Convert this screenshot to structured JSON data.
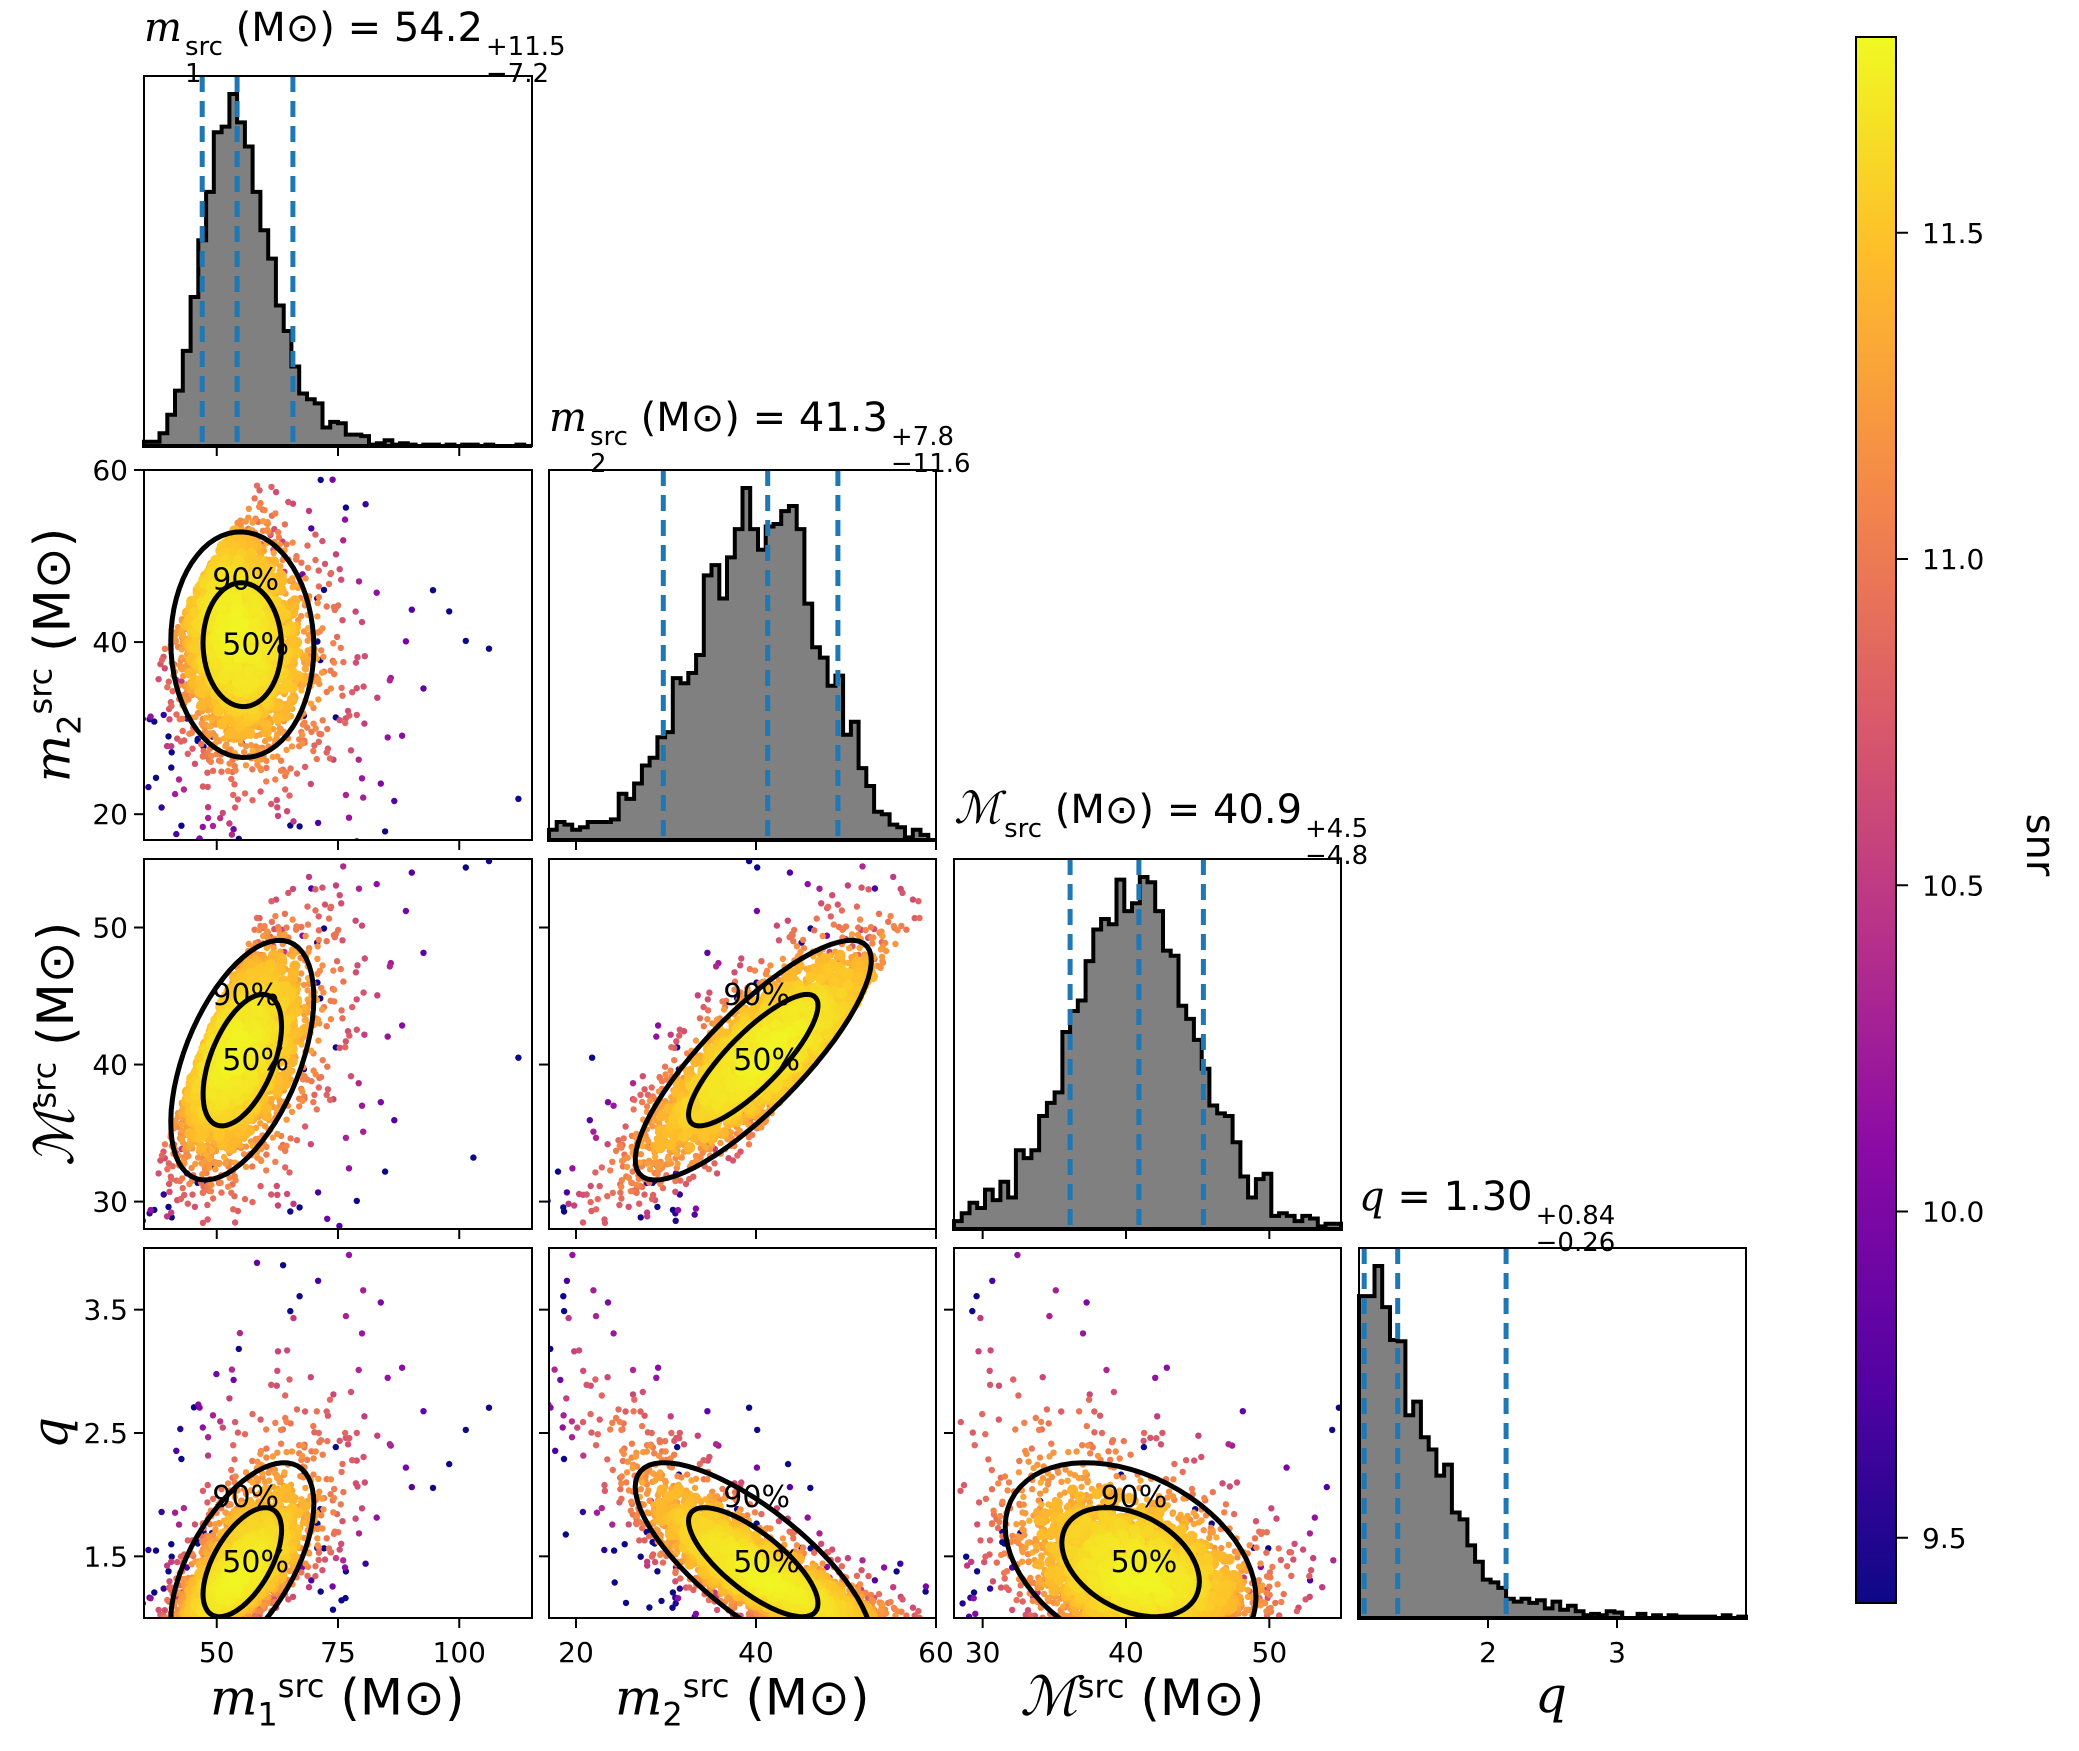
{
  "chart_data": {
    "type": "scatter",
    "kind": "corner-plot",
    "parameters": [
      {
        "key": "m1",
        "symbol": "m",
        "sub": "1",
        "sup": "src",
        "unit": "(M⊙)",
        "range": [
          35,
          115
        ],
        "ticks": [
          50,
          75,
          100
        ],
        "tick_labels": [
          "50",
          "75",
          "100"
        ]
      },
      {
        "key": "m2",
        "symbol": "m",
        "sub": "2",
        "sup": "src",
        "unit": "(M⊙)",
        "range": [
          17,
          60
        ],
        "ticks": [
          20,
          40,
          60
        ],
        "tick_labels": [
          "20",
          "40",
          "60"
        ]
      },
      {
        "key": "mc",
        "symbol": "ℳ",
        "sub": "",
        "sup": "src",
        "unit": "(M⊙)",
        "range": [
          28,
          55
        ],
        "ticks": [
          30,
          40,
          50
        ],
        "tick_labels": [
          "30",
          "40",
          "50"
        ]
      },
      {
        "key": "q",
        "symbol": "q",
        "sub": "",
        "sup": "",
        "unit": "",
        "range": [
          1.0,
          4.0
        ],
        "ticks": [
          1.5,
          2.5,
          3.5
        ],
        "tick_labels": [
          "1.5",
          "2.5",
          "3.5"
        ],
        "diag_ticks": [
          2,
          3
        ],
        "diag_tick_labels": [
          "2",
          "3"
        ]
      }
    ],
    "titles": [
      {
        "param": "m1",
        "lhs_symbol": "m",
        "lhs_sub": "1",
        "lhs_sup": "src",
        "unit": "(M⊙)",
        "value": "54.2",
        "plus": "+11.5",
        "minus": "−7.2"
      },
      {
        "param": "m2",
        "lhs_symbol": "m",
        "lhs_sub": "2",
        "lhs_sup": "src",
        "unit": "(M⊙)",
        "value": "41.3",
        "plus": "+7.8",
        "minus": "−11.6"
      },
      {
        "param": "mc",
        "lhs_symbol": "ℳ",
        "lhs_sub": "",
        "lhs_sup": "src",
        "unit": "(M⊙)",
        "value": "40.9",
        "plus": "+4.5",
        "minus": "−4.8"
      },
      {
        "param": "q",
        "lhs_symbol": "q",
        "lhs_sub": "",
        "lhs_sup": "",
        "unit": "",
        "value": "1.30",
        "plus": "+0.84",
        "minus": "−0.26"
      }
    ],
    "quantile_lines": {
      "m1": [
        47.0,
        54.2,
        65.7
      ],
      "m2": [
        29.7,
        41.3,
        49.1
      ],
      "mc": [
        36.1,
        40.9,
        45.4
      ],
      "q": [
        1.04,
        1.3,
        2.14
      ]
    },
    "histograms": {
      "m1": {
        "peak": 53,
        "left_width": 4.5,
        "right_width": 7.5
      },
      "m2": {
        "peak": 43,
        "left_width": 7.5,
        "right_width": 4.5
      },
      "mc": {
        "peak": 41,
        "left_width": 3.0,
        "right_width": 3.0
      },
      "q": {
        "peak": 1.12,
        "left_width": 0.08,
        "right_width": 0.45
      }
    },
    "contour_labels": [
      "50%",
      "90%"
    ],
    "colorbar": {
      "label": "snr",
      "range": [
        9.4,
        11.8
      ],
      "ticks": [
        9.5,
        10.0,
        10.5,
        11.0,
        11.5
      ],
      "tick_labels": [
        "9.5",
        "10.0",
        "10.5",
        "11.0",
        "11.5"
      ],
      "colormap": "plasma"
    },
    "colors": {
      "hist_fill": "#808080",
      "hist_edge": "#000000",
      "quantile_line": "#1f77b4",
      "contour": "#000000"
    }
  }
}
